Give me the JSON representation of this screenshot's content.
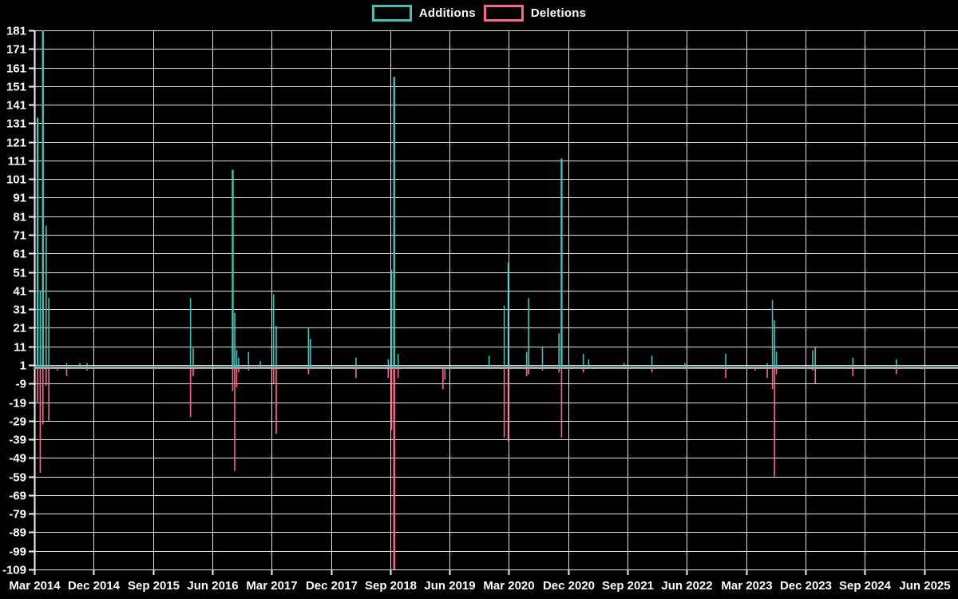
{
  "legend": {
    "additions_label": "Additions",
    "deletions_label": "Deletions"
  },
  "colors": {
    "background": "#000000",
    "grid": "#f2f2f2",
    "text": "#ffffff",
    "additions": "#45c0b5",
    "deletions": "#f9688c",
    "baseline_band": "#9aa8ac"
  },
  "chart_data": {
    "type": "line",
    "title": "",
    "xlabel": "",
    "ylabel": "",
    "legend_position": "top-center",
    "grid": true,
    "y_axis": {
      "min": -109,
      "max": 181,
      "tick_step": 10,
      "tick_labels": [
        181,
        171,
        161,
        151,
        141,
        131,
        121,
        111,
        101,
        91,
        81,
        71,
        61,
        51,
        41,
        31,
        21,
        11,
        1,
        -9,
        -19,
        -29,
        -39,
        -49,
        -59,
        -69,
        -79,
        -89,
        -99,
        -109
      ]
    },
    "x_axis": {
      "start": "2014-03",
      "end": "2025-06",
      "months_per_tick": 9,
      "total_months": 135,
      "tick_labels": [
        "Mar 2014",
        "Dec 2014",
        "Sep 2015",
        "Jun 2016",
        "Mar 2017",
        "Dec 2017",
        "Sep 2018",
        "Jun 2019",
        "Mar 2020",
        "Dec 2020",
        "Sep 2021",
        "Jun 2022",
        "Mar 2023",
        "Dec 2023",
        "Sep 2024",
        "Jun 2025"
      ]
    },
    "points_format": [
      "date",
      "months_since_start",
      "value"
    ],
    "series": [
      {
        "name": "Additions",
        "color": "#45c0b5",
        "baseline": 0,
        "points": [
          [
            "2014-03",
            0.5,
            134
          ],
          [
            "2014-03",
            0.9,
            41
          ],
          [
            "2014-04",
            1.3,
            181
          ],
          [
            "2014-04",
            1.8,
            76
          ],
          [
            "2014-05",
            2.2,
            37
          ],
          [
            "2014-08",
            4.9,
            2
          ],
          [
            "2014-10",
            6.9,
            2
          ],
          [
            "2014-11",
            8.0,
            2
          ],
          [
            "2016-02",
            23.7,
            37
          ],
          [
            "2016-03",
            24.1,
            10
          ],
          [
            "2016-09",
            30.1,
            106
          ],
          [
            "2016-09",
            30.4,
            29
          ],
          [
            "2016-09",
            30.7,
            9
          ],
          [
            "2016-10",
            31.0,
            5
          ],
          [
            "2016-11",
            32.5,
            8
          ],
          [
            "2017-01",
            34.3,
            3
          ],
          [
            "2017-03",
            36.3,
            39
          ],
          [
            "2017-03",
            36.7,
            22
          ],
          [
            "2017-08",
            41.6,
            21
          ],
          [
            "2017-08",
            41.9,
            15
          ],
          [
            "2018-03",
            48.8,
            5
          ],
          [
            "2018-08",
            53.7,
            4
          ],
          [
            "2018-09",
            54.2,
            52
          ],
          [
            "2018-09",
            54.6,
            156
          ],
          [
            "2018-10",
            55.2,
            7
          ],
          [
            "2019-12",
            69.0,
            6
          ],
          [
            "2020-02",
            71.3,
            33
          ],
          [
            "2020-03",
            71.9,
            56
          ],
          [
            "2020-05",
            74.7,
            8
          ],
          [
            "2020-06",
            75.0,
            37
          ],
          [
            "2020-08",
            77.1,
            11
          ],
          [
            "2020-10",
            79.6,
            18
          ],
          [
            "2020-11",
            80.0,
            112
          ],
          [
            "2020-12",
            81.1,
            2
          ],
          [
            "2021-02",
            83.3,
            7
          ],
          [
            "2021-03",
            84.1,
            4
          ],
          [
            "2021-08",
            89.5,
            2
          ],
          [
            "2021-12",
            93.7,
            6
          ],
          [
            "2022-05",
            98.7,
            2
          ],
          [
            "2022-11",
            104.9,
            7
          ],
          [
            "2023-06",
            111.2,
            2
          ],
          [
            "2023-07",
            112.0,
            36
          ],
          [
            "2023-07",
            112.3,
            25
          ],
          [
            "2023-07",
            112.6,
            8
          ],
          [
            "2024-01",
            118.1,
            9
          ],
          [
            "2024-01",
            118.5,
            11
          ],
          [
            "2024-07",
            124.2,
            5
          ],
          [
            "2025-01",
            130.8,
            4
          ]
        ]
      },
      {
        "name": "Deletions",
        "color": "#f9688c",
        "baseline": 0,
        "points": [
          [
            "2014-03",
            0.5,
            -19
          ],
          [
            "2014-03",
            0.9,
            -57
          ],
          [
            "2014-04",
            1.3,
            -31
          ],
          [
            "2014-04",
            1.8,
            -10
          ],
          [
            "2014-05",
            2.2,
            -29
          ],
          [
            "2014-06",
            3.5,
            -2
          ],
          [
            "2014-08",
            4.9,
            -5
          ],
          [
            "2014-11",
            8.0,
            -2
          ],
          [
            "2016-02",
            23.7,
            -27
          ],
          [
            "2016-03",
            24.1,
            -5
          ],
          [
            "2016-09",
            30.1,
            -13
          ],
          [
            "2016-09",
            30.4,
            -56
          ],
          [
            "2016-09",
            30.7,
            -11
          ],
          [
            "2016-10",
            31.0,
            -3
          ],
          [
            "2016-11",
            32.5,
            -2
          ],
          [
            "2017-03",
            36.3,
            -9
          ],
          [
            "2017-03",
            36.7,
            -36
          ],
          [
            "2017-08",
            41.6,
            -4
          ],
          [
            "2018-03",
            48.8,
            -6
          ],
          [
            "2018-08",
            53.7,
            -6
          ],
          [
            "2018-09",
            54.2,
            -34
          ],
          [
            "2018-09",
            54.6,
            -109
          ],
          [
            "2018-10",
            55.2,
            -6
          ],
          [
            "2019-05",
            62.0,
            -12
          ],
          [
            "2019-05",
            62.3,
            -7
          ],
          [
            "2019-12",
            69.0,
            -1
          ],
          [
            "2020-02",
            71.3,
            -38
          ],
          [
            "2020-03",
            71.9,
            -40
          ],
          [
            "2020-05",
            74.7,
            -5
          ],
          [
            "2020-06",
            75.0,
            -4
          ],
          [
            "2020-08",
            77.1,
            -2
          ],
          [
            "2020-10",
            79.6,
            -3
          ],
          [
            "2020-11",
            80.0,
            -38
          ],
          [
            "2020-12",
            81.1,
            -2
          ],
          [
            "2021-02",
            83.3,
            -3
          ],
          [
            "2021-12",
            93.7,
            -3
          ],
          [
            "2022-11",
            104.9,
            -6
          ],
          [
            "2023-04",
            109.4,
            -2
          ],
          [
            "2023-06",
            111.2,
            -6
          ],
          [
            "2023-07",
            112.0,
            -12
          ],
          [
            "2023-07",
            112.3,
            -59
          ],
          [
            "2023-07",
            112.6,
            -4
          ],
          [
            "2024-01",
            118.1,
            -2
          ],
          [
            "2024-01",
            118.5,
            -9
          ],
          [
            "2024-07",
            124.2,
            -5
          ],
          [
            "2025-01",
            130.8,
            -4
          ]
        ]
      }
    ]
  }
}
